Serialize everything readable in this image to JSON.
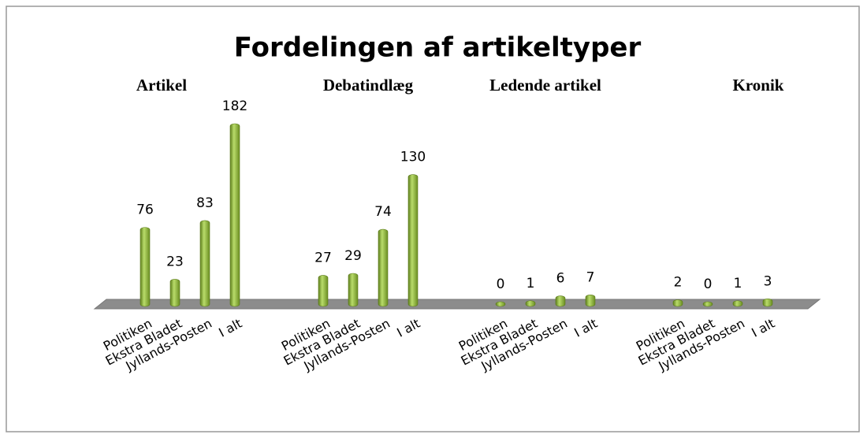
{
  "chart_data": {
    "type": "bar",
    "title": "Fordelingen af artikeltyper",
    "color": "#8db33a",
    "groups": [
      {
        "name": "Artikel",
        "categories": [
          "Politiken",
          "Ekstra Bladet",
          "Jyllands-Posten",
          "I alt"
        ],
        "values": [
          76,
          23,
          83,
          182
        ]
      },
      {
        "name": "Debatindlæg",
        "categories": [
          "Politiken",
          "Ekstra Bladet",
          "Jyllands-Posten",
          "I alt"
        ],
        "values": [
          27,
          29,
          74,
          130
        ]
      },
      {
        "name": "Ledende artikel",
        "categories": [
          "Politiken",
          "Ekstra Bladet",
          "Jyllands-Posten",
          "I alt"
        ],
        "values": [
          0,
          1,
          6,
          7
        ]
      },
      {
        "name": "Kronik",
        "categories": [
          "Politiken",
          "Ekstra Bladet",
          "Jyllands-Posten",
          "I alt"
        ],
        "values": [
          2,
          0,
          1,
          3
        ]
      }
    ]
  }
}
